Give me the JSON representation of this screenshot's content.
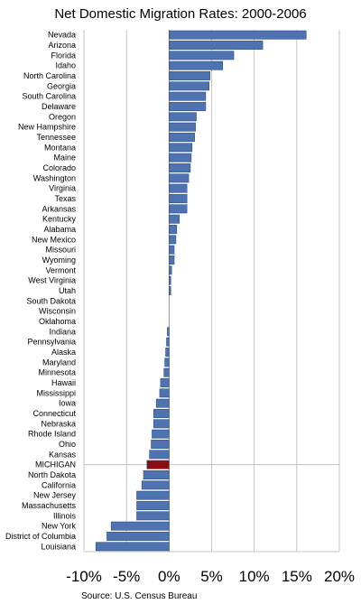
{
  "chart_data": {
    "type": "bar",
    "orientation": "horizontal",
    "title": "Net Domestic Migration Rates: 2000-2006",
    "source": "Source: U.S. Census Bureau",
    "xlim": [
      -10,
      20
    ],
    "xticks": [
      -10,
      -5,
      0,
      5,
      10,
      15,
      20
    ],
    "xtick_labels": [
      "-10%",
      "-5%",
      "0%",
      "5%",
      "10%",
      "15%",
      "20%"
    ],
    "grid": true,
    "categories": [
      "Nevada",
      "Arizona",
      "Florida",
      "Idaho",
      "North Carolina",
      "Georgia",
      "South Carolina",
      "Delaware",
      "Oregon",
      "New Hampshire",
      "Tennessee",
      "Montana",
      "Maine",
      "Colorado",
      "Washington",
      "Virginia",
      "Texas",
      "Arkansas",
      "Kentucky",
      "Alabama",
      "New Mexico",
      "Missouri",
      "Wyoming",
      "Vermont",
      "West Virginia",
      "Utah",
      "South Dakota",
      "Wisconsin",
      "Oklahoma",
      "Indiana",
      "Pennsylvania",
      "Alaska",
      "Maryland",
      "Minnesota",
      "Hawaii",
      "Mississippi",
      "Iowa",
      "Connecticut",
      "Nebraska",
      "Rhode Island",
      "Ohio",
      "Kansas",
      "MICHIGAN",
      "North Dakota",
      "California",
      "New Jersey",
      "Massachusetts",
      "Illinois",
      "New York",
      "District of Columbia",
      "Louisiana"
    ],
    "values": [
      16.1,
      11.0,
      7.6,
      6.3,
      4.8,
      4.7,
      4.3,
      4.3,
      3.2,
      3.1,
      3.0,
      2.7,
      2.6,
      2.5,
      2.3,
      2.1,
      2.1,
      2.1,
      1.2,
      0.9,
      0.8,
      0.6,
      0.6,
      0.3,
      0.2,
      0.2,
      0.0,
      0.0,
      0.0,
      -0.2,
      -0.3,
      -0.4,
      -0.5,
      -0.6,
      -1.0,
      -1.1,
      -1.5,
      -1.8,
      -1.8,
      -2.0,
      -2.1,
      -2.3,
      -2.6,
      -3.0,
      -3.2,
      -3.8,
      -3.8,
      -3.8,
      -6.8,
      -7.3,
      -8.6
    ],
    "highlight_category": "MICHIGAN",
    "colors": {
      "bar": "#4f72b0",
      "highlight": "#8b0d11",
      "grid": "#b8b8b8"
    }
  }
}
